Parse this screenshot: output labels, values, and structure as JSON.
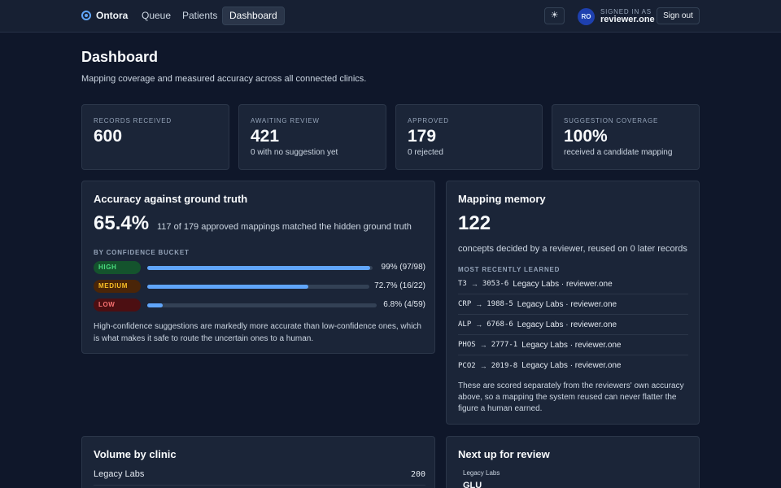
{
  "nav": {
    "brand": "Ontora",
    "links": [
      "Queue",
      "Patients",
      "Dashboard"
    ],
    "active": "Dashboard",
    "theme_glyph": "☀",
    "avatar_initials": "RO",
    "signed_in_caption": "SIGNED IN AS",
    "signed_in_user": "reviewer.one",
    "sign_out": "Sign out"
  },
  "header": {
    "title": "Dashboard",
    "subtitle": "Mapping coverage and measured accuracy across all connected clinics."
  },
  "stats": [
    {
      "label": "RECORDS RECEIVED",
      "value": "600",
      "note": ""
    },
    {
      "label": "AWAITING REVIEW",
      "value": "421",
      "note": "0 with no suggestion yet"
    },
    {
      "label": "APPROVED",
      "value": "179",
      "note": "0 rejected"
    },
    {
      "label": "SUGGESTION COVERAGE",
      "value": "100%",
      "note": "received a candidate mapping"
    }
  ],
  "accuracy": {
    "title": "Accuracy against ground truth",
    "value": "65.4%",
    "description": "117 of 179 approved mappings matched the hidden ground truth",
    "bucket_heading": "BY CONFIDENCE BUCKET",
    "buckets": [
      {
        "label": "HIGH",
        "fraction": 0.99,
        "text": "99% (97/98)",
        "pill_bg": "#14532d",
        "pill_fg": "#4ade80"
      },
      {
        "label": "MEDIUM",
        "fraction": 0.727,
        "text": "72.7% (16/22)",
        "pill_bg": "#4a2508",
        "pill_fg": "#fbbf24"
      },
      {
        "label": "LOW",
        "fraction": 0.068,
        "text": "6.8% (4/59)",
        "pill_bg": "#4c0f12",
        "pill_fg": "#f87171"
      }
    ],
    "footer": "High-confidence suggestions are markedly more accurate than low-confidence ones, which is what makes it safe to route the uncertain ones to a human."
  },
  "memory": {
    "title": "Mapping memory",
    "value": "122",
    "description": "concepts decided by a reviewer, reused on 0 later records",
    "heading": "MOST RECENTLY LEARNED",
    "arrow": "→",
    "items": [
      {
        "code": "T3",
        "loinc": "3053-6",
        "source": "Legacy Labs · reviewer.one"
      },
      {
        "code": "CRP",
        "loinc": "1988-5",
        "source": "Legacy Labs · reviewer.one"
      },
      {
        "code": "ALP",
        "loinc": "6768-6",
        "source": "Legacy Labs · reviewer.one"
      },
      {
        "code": "PHOS",
        "loinc": "2777-1",
        "source": "Legacy Labs · reviewer.one"
      },
      {
        "code": "PCO2",
        "loinc": "2019-8",
        "source": "Legacy Labs · reviewer.one"
      }
    ],
    "footer": "These are scored separately from the reviewers' own accuracy above, so a mapping the system reused can never flatter the figure a human earned."
  },
  "volume": {
    "title": "Volume by clinic",
    "rows": [
      {
        "clinic": "Legacy Labs",
        "count": "200"
      }
    ]
  },
  "next_up": {
    "title": "Next up for review",
    "clinic": "Legacy Labs",
    "code": "GLU"
  }
}
